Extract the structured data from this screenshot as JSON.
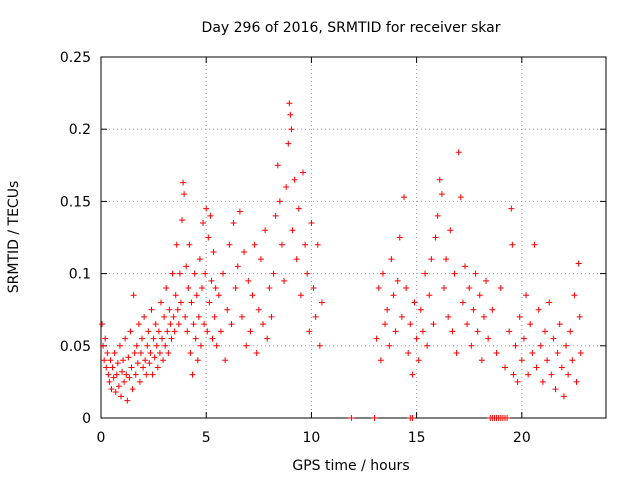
{
  "chart_data": {
    "type": "scatter",
    "title": "Day 296 of 2016, SRMTID for receiver skar",
    "xlabel": "GPS time / hours",
    "ylabel": "SRMTID / TECUs",
    "xlim": [
      0,
      24
    ],
    "ylim": [
      0,
      0.25
    ],
    "xticks": [
      0,
      5,
      10,
      15,
      20
    ],
    "xtick_labels": [
      "0",
      "5",
      "10",
      "15",
      "20"
    ],
    "yticks": [
      0,
      0.05,
      0.1,
      0.15,
      0.2,
      0.25
    ],
    "ytick_labels": [
      "0",
      "0.05",
      "0.1",
      "0.15",
      "0.2",
      "0.25"
    ],
    "grid": true,
    "marker": "+",
    "series": [
      {
        "name": "SRMTID",
        "color": "#ff0000",
        "points": [
          [
            0.05,
            0.065
          ],
          [
            0.1,
            0.05
          ],
          [
            0.15,
            0.04
          ],
          [
            0.2,
            0.055
          ],
          [
            0.25,
            0.035
          ],
          [
            0.3,
            0.045
          ],
          [
            0.35,
            0.03
          ],
          [
            0.4,
            0.025
          ],
          [
            0.45,
            0.04
          ],
          [
            0.5,
            0.02
          ],
          [
            0.55,
            0.035
          ],
          [
            0.6,
            0.028
          ],
          [
            0.65,
            0.045
          ],
          [
            0.7,
            0.018
          ],
          [
            0.75,
            0.03
          ],
          [
            0.8,
            0.038
          ],
          [
            0.85,
            0.022
          ],
          [
            0.9,
            0.05
          ],
          [
            0.95,
            0.015
          ],
          [
            1.0,
            0.032
          ],
          [
            1.05,
            0.04
          ],
          [
            1.1,
            0.025
          ],
          [
            1.15,
            0.055
          ],
          [
            1.2,
            0.03
          ],
          [
            1.25,
            0.012
          ],
          [
            1.3,
            0.042
          ],
          [
            1.35,
            0.028
          ],
          [
            1.4,
            0.06
          ],
          [
            1.45,
            0.035
          ],
          [
            1.5,
            0.02
          ],
          [
            1.55,
            0.085
          ],
          [
            1.6,
            0.045
          ],
          [
            1.65,
            0.03
          ],
          [
            1.7,
            0.05
          ],
          [
            1.75,
            0.038
          ],
          [
            1.8,
            0.065
          ],
          [
            1.85,
            0.025
          ],
          [
            1.9,
            0.045
          ],
          [
            1.95,
            0.055
          ],
          [
            2.0,
            0.035
          ],
          [
            2.05,
            0.07
          ],
          [
            2.1,
            0.04
          ],
          [
            2.15,
            0.03
          ],
          [
            2.2,
            0.05
          ],
          [
            2.25,
            0.06
          ],
          [
            2.3,
            0.038
          ],
          [
            2.35,
            0.045
          ],
          [
            2.4,
            0.075
          ],
          [
            2.45,
            0.03
          ],
          [
            2.5,
            0.055
          ],
          [
            2.55,
            0.042
          ],
          [
            2.6,
            0.065
          ],
          [
            2.65,
            0.05
          ],
          [
            2.7,
            0.035
          ],
          [
            2.75,
            0.06
          ],
          [
            2.8,
            0.045
          ],
          [
            2.85,
            0.08
          ],
          [
            2.9,
            0.055
          ],
          [
            2.95,
            0.04
          ],
          [
            3.0,
            0.07
          ],
          [
            3.05,
            0.05
          ],
          [
            3.1,
            0.09
          ],
          [
            3.15,
            0.06
          ],
          [
            3.2,
            0.045
          ],
          [
            3.25,
            0.075
          ],
          [
            3.3,
            0.065
          ],
          [
            3.35,
            0.055
          ],
          [
            3.4,
            0.1
          ],
          [
            3.45,
            0.07
          ],
          [
            3.5,
            0.06
          ],
          [
            3.55,
            0.085
          ],
          [
            3.6,
            0.12
          ],
          [
            3.65,
            0.075
          ],
          [
            3.7,
            0.065
          ],
          [
            3.75,
            0.1
          ],
          [
            3.8,
            0.08
          ],
          [
            3.85,
            0.137
          ],
          [
            3.9,
            0.163
          ],
          [
            3.95,
            0.155
          ],
          [
            4.0,
            0.07
          ],
          [
            4.05,
            0.105
          ],
          [
            4.1,
            0.06
          ],
          [
            4.15,
            0.09
          ],
          [
            4.2,
            0.12
          ],
          [
            4.25,
            0.045
          ],
          [
            4.3,
            0.08
          ],
          [
            4.35,
            0.03
          ],
          [
            4.4,
            0.065
          ],
          [
            4.45,
            0.1
          ],
          [
            4.5,
            0.055
          ],
          [
            4.55,
            0.085
          ],
          [
            4.6,
            0.04
          ],
          [
            4.65,
            0.07
          ],
          [
            4.7,
            0.11
          ],
          [
            4.75,
            0.05
          ],
          [
            4.8,
            0.09
          ],
          [
            4.85,
            0.135
          ],
          [
            4.9,
            0.065
          ],
          [
            4.95,
            0.1
          ],
          [
            5.0,
            0.145
          ],
          [
            5.05,
            0.06
          ],
          [
            5.1,
            0.125
          ],
          [
            5.15,
            0.08
          ],
          [
            5.2,
            0.14
          ],
          [
            5.25,
            0.095
          ],
          [
            5.3,
            0.055
          ],
          [
            5.35,
            0.115
          ],
          [
            5.4,
            0.07
          ],
          [
            5.45,
            0.09
          ],
          [
            5.5,
            0.05
          ],
          [
            5.6,
            0.085
          ],
          [
            5.7,
            0.06
          ],
          [
            5.8,
            0.1
          ],
          [
            5.9,
            0.04
          ],
          [
            6.0,
            0.075
          ],
          [
            6.1,
            0.12
          ],
          [
            6.2,
            0.065
          ],
          [
            6.3,
            0.135
          ],
          [
            6.4,
            0.09
          ],
          [
            6.5,
            0.105
          ],
          [
            6.6,
            0.143
          ],
          [
            6.7,
            0.07
          ],
          [
            6.8,
            0.115
          ],
          [
            6.9,
            0.05
          ],
          [
            7.0,
            0.095
          ],
          [
            7.1,
            0.06
          ],
          [
            7.2,
            0.085
          ],
          [
            7.3,
            0.12
          ],
          [
            7.4,
            0.045
          ],
          [
            7.5,
            0.075
          ],
          [
            7.6,
            0.11
          ],
          [
            7.7,
            0.065
          ],
          [
            7.8,
            0.13
          ],
          [
            7.9,
            0.055
          ],
          [
            8.0,
            0.09
          ],
          [
            8.1,
            0.07
          ],
          [
            8.2,
            0.1
          ],
          [
            8.3,
            0.14
          ],
          [
            8.4,
            0.175
          ],
          [
            8.5,
            0.15
          ],
          [
            8.6,
            0.12
          ],
          [
            8.7,
            0.095
          ],
          [
            8.8,
            0.16
          ],
          [
            8.9,
            0.19
          ],
          [
            8.95,
            0.218
          ],
          [
            9.0,
            0.21
          ],
          [
            9.05,
            0.2
          ],
          [
            9.1,
            0.13
          ],
          [
            9.2,
            0.165
          ],
          [
            9.3,
            0.11
          ],
          [
            9.4,
            0.145
          ],
          [
            9.5,
            0.085
          ],
          [
            9.6,
            0.17
          ],
          [
            9.7,
            0.12
          ],
          [
            9.8,
            0.1
          ],
          [
            9.9,
            0.06
          ],
          [
            10.0,
            0.135
          ],
          [
            10.1,
            0.09
          ],
          [
            10.2,
            0.07
          ],
          [
            10.3,
            0.12
          ],
          [
            10.4,
            0.05
          ],
          [
            10.5,
            0.08
          ],
          [
            11.9,
            0
          ],
          [
            13.0,
            0
          ],
          [
            14.7,
            0
          ],
          [
            14.8,
            0
          ],
          [
            13.1,
            0.055
          ],
          [
            13.2,
            0.09
          ],
          [
            13.3,
            0.04
          ],
          [
            13.4,
            0.1
          ],
          [
            13.5,
            0.065
          ],
          [
            13.6,
            0.075
          ],
          [
            13.7,
            0.05
          ],
          [
            13.8,
            0.11
          ],
          [
            13.9,
            0.085
          ],
          [
            14.0,
            0.06
          ],
          [
            14.1,
            0.095
          ],
          [
            14.2,
            0.125
          ],
          [
            14.3,
            0.07
          ],
          [
            14.4,
            0.153
          ],
          [
            14.5,
            0.09
          ],
          [
            14.6,
            0.045
          ],
          [
            14.7,
            0.065
          ],
          [
            14.8,
            0.03
          ],
          [
            14.9,
            0.08
          ],
          [
            15.0,
            0.055
          ],
          [
            15.1,
            0.04
          ],
          [
            15.2,
            0.075
          ],
          [
            15.3,
            0.06
          ],
          [
            15.4,
            0.1
          ],
          [
            15.5,
            0.05
          ],
          [
            15.6,
            0.085
          ],
          [
            15.7,
            0.11
          ],
          [
            15.8,
            0.065
          ],
          [
            15.9,
            0.125
          ],
          [
            16.0,
            0.14
          ],
          [
            16.1,
            0.165
          ],
          [
            16.2,
            0.155
          ],
          [
            16.3,
            0.09
          ],
          [
            16.4,
            0.11
          ],
          [
            16.5,
            0.07
          ],
          [
            16.6,
            0.13
          ],
          [
            16.7,
            0.06
          ],
          [
            16.8,
            0.1
          ],
          [
            16.9,
            0.045
          ],
          [
            17.0,
            0.184
          ],
          [
            17.1,
            0.153
          ],
          [
            17.2,
            0.08
          ],
          [
            17.3,
            0.105
          ],
          [
            17.4,
            0.065
          ],
          [
            17.5,
            0.09
          ],
          [
            17.6,
            0.05
          ],
          [
            17.7,
            0.075
          ],
          [
            17.8,
            0.1
          ],
          [
            17.9,
            0.06
          ],
          [
            18.0,
            0.085
          ],
          [
            18.1,
            0.04
          ],
          [
            18.2,
            0.07
          ],
          [
            18.3,
            0.095
          ],
          [
            18.4,
            0.055
          ],
          [
            18.5,
            0.0
          ],
          [
            18.6,
            0.0
          ],
          [
            18.7,
            0.0
          ],
          [
            18.8,
            0.0
          ],
          [
            18.9,
            0.0
          ],
          [
            19.0,
            0.0
          ],
          [
            19.1,
            0.0
          ],
          [
            19.2,
            0.0
          ],
          [
            19.3,
            0.0
          ],
          [
            18.6,
            0.075
          ],
          [
            18.8,
            0.045
          ],
          [
            19.0,
            0.09
          ],
          [
            19.2,
            0.035
          ],
          [
            19.4,
            0.06
          ],
          [
            19.5,
            0.145
          ],
          [
            19.55,
            0.12
          ],
          [
            19.6,
            0.03
          ],
          [
            19.7,
            0.05
          ],
          [
            19.8,
            0.025
          ],
          [
            19.9,
            0.07
          ],
          [
            20.0,
            0.04
          ],
          [
            20.1,
            0.055
          ],
          [
            20.2,
            0.085
          ],
          [
            20.3,
            0.03
          ],
          [
            20.4,
            0.065
          ],
          [
            20.5,
            0.045
          ],
          [
            20.6,
            0.12
          ],
          [
            20.7,
            0.035
          ],
          [
            20.8,
            0.075
          ],
          [
            20.9,
            0.05
          ],
          [
            21.0,
            0.025
          ],
          [
            21.1,
            0.06
          ],
          [
            21.2,
            0.04
          ],
          [
            21.3,
            0.08
          ],
          [
            21.4,
            0.03
          ],
          [
            21.5,
            0.055
          ],
          [
            21.6,
            0.02
          ],
          [
            21.7,
            0.045
          ],
          [
            21.8,
            0.065
          ],
          [
            21.9,
            0.035
          ],
          [
            22.0,
            0.015
          ],
          [
            22.1,
            0.05
          ],
          [
            22.2,
            0.03
          ],
          [
            22.3,
            0.06
          ],
          [
            22.4,
            0.04
          ],
          [
            22.5,
            0.085
          ],
          [
            22.6,
            0.025
          ],
          [
            22.7,
            0.107
          ],
          [
            22.75,
            0.07
          ],
          [
            22.8,
            0.045
          ]
        ]
      }
    ]
  }
}
